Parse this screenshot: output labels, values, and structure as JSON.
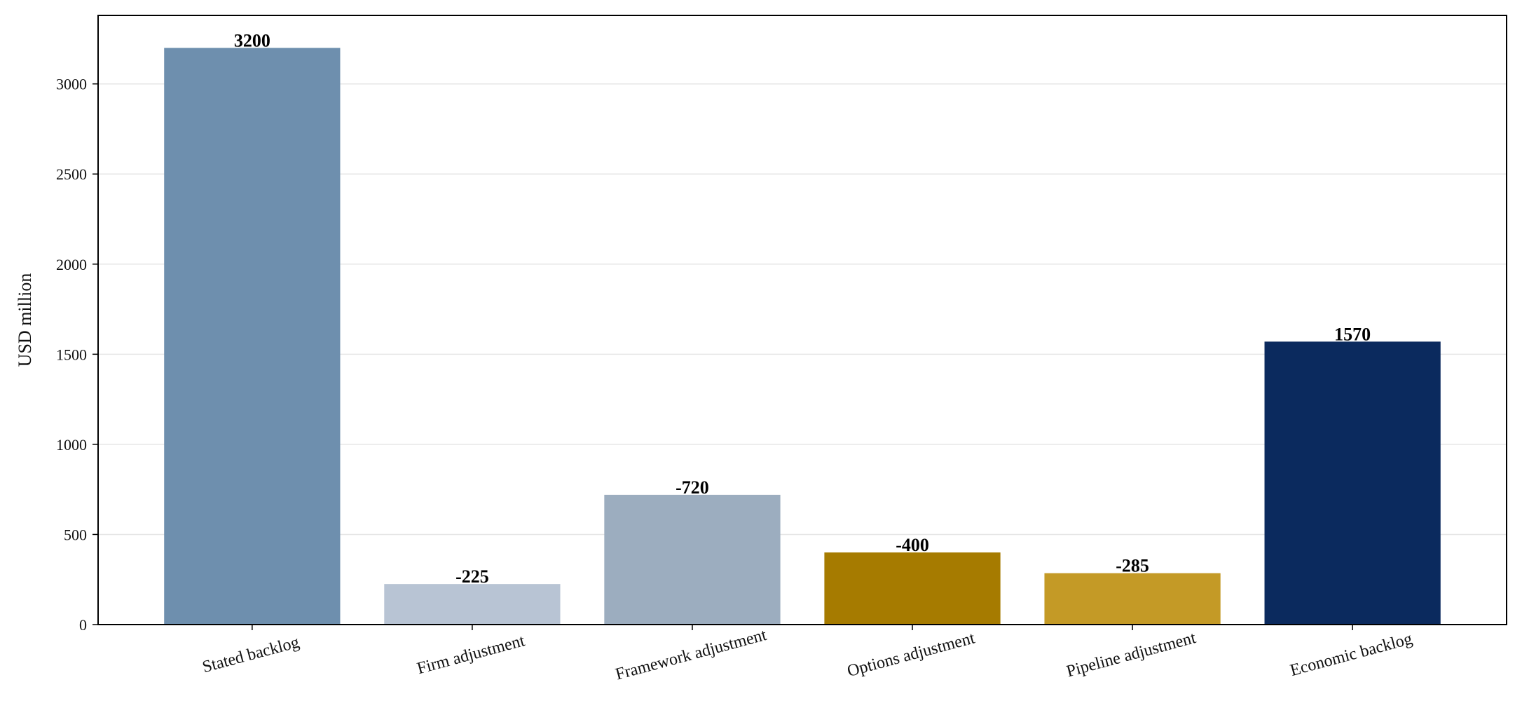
{
  "chart_data": {
    "type": "bar",
    "title": "",
    "xlabel": "",
    "ylabel": "USD million",
    "ylim": [
      0,
      3380
    ],
    "yticks": [
      0,
      500,
      1000,
      1500,
      2000,
      2500,
      3000
    ],
    "grid": "y",
    "categories": [
      "Stated backlog",
      "Firm adjustment",
      "Framework adjustment",
      "Options adjustment",
      "Pipeline adjustment",
      "Economic backlog"
    ],
    "values": [
      3200,
      225,
      720,
      400,
      285,
      1570
    ],
    "labels": [
      "3200",
      "-225",
      "-720",
      "-400",
      "-285",
      "1570"
    ],
    "colors": [
      "#6e8fae",
      "#b8c4d4",
      "#9cadbf",
      "#a67b00",
      "#c49a26",
      "#0b2a5e"
    ]
  }
}
